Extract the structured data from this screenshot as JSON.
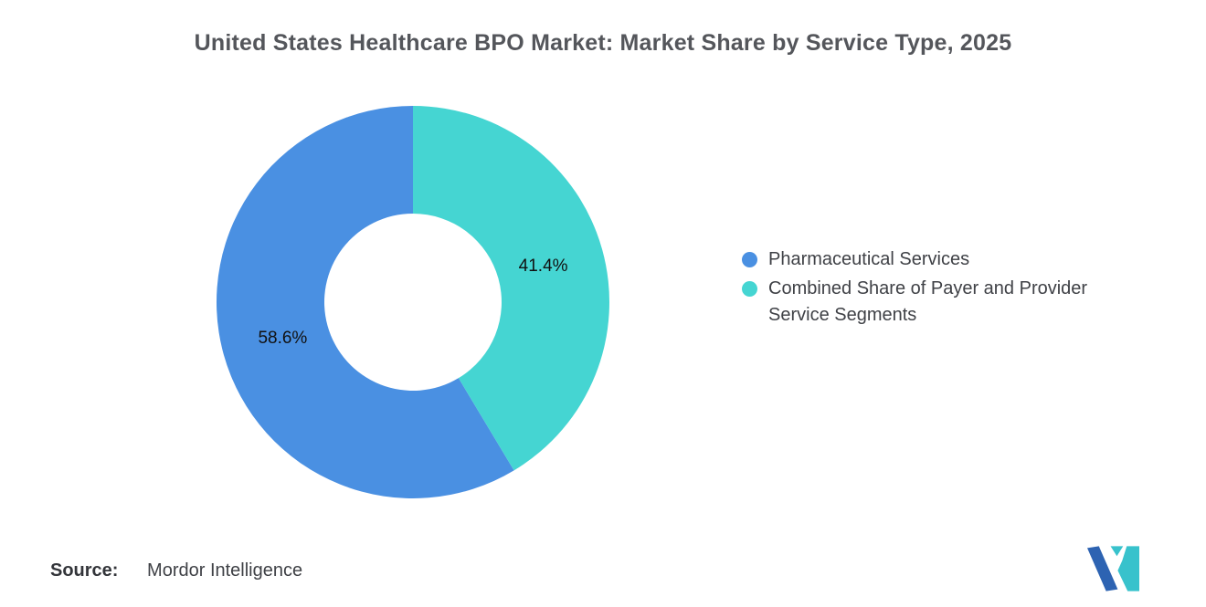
{
  "title": "United States Healthcare BPO Market: Market Share by Service Type, 2025",
  "chart_data": {
    "type": "pie",
    "subtype": "donut",
    "start_angle": "top",
    "legend_position": "right",
    "label_color": "#111111",
    "series": [
      {
        "name": "Pharmaceutical Services",
        "value": 58.6,
        "label": "58.6%",
        "color": "#4A90E2"
      },
      {
        "name": "Combined Share of Payer and Provider Service Segments",
        "value": 41.4,
        "label": "41.4%",
        "color": "#45D5D2"
      }
    ]
  },
  "source": {
    "label": "Source:",
    "value": "Mordor Intelligence"
  },
  "logo": {
    "name": "Mordor Intelligence logo",
    "colors": {
      "primary": "#2D63B2",
      "secondary": "#38C2CC"
    }
  }
}
